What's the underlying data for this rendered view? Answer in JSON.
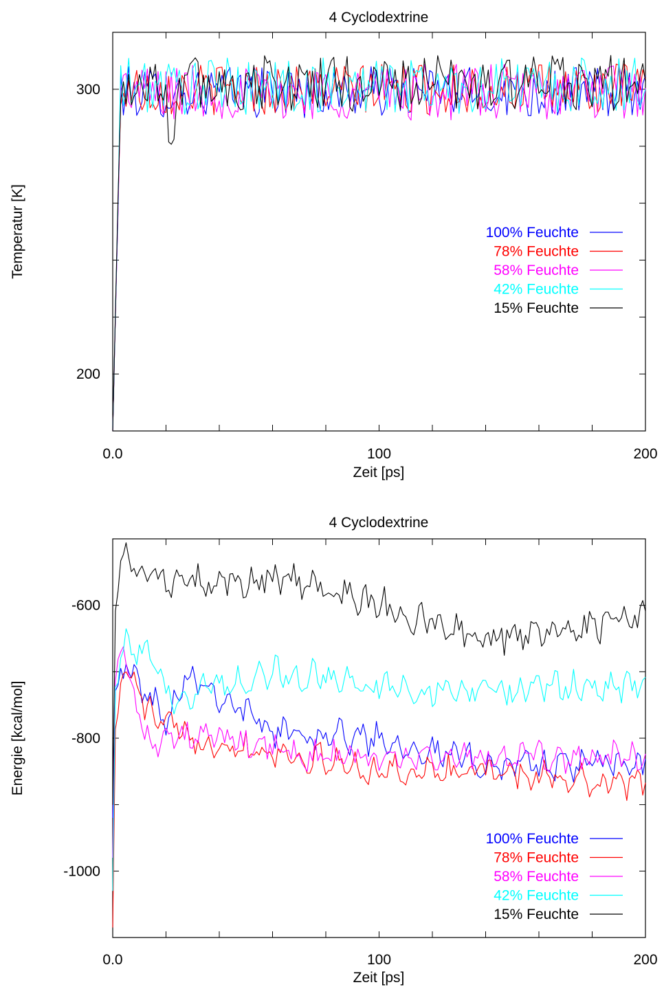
{
  "chart_data": [
    {
      "type": "line",
      "title": "4 Cyclodextrine",
      "xlabel": "Zeit [ps]",
      "ylabel": "Temperatur [K]",
      "xlim": [
        0,
        200
      ],
      "ylim": [
        180,
        320
      ],
      "xticks_labeled": [
        {
          "value": 0,
          "label": "0.0"
        },
        {
          "value": 100,
          "label": "100"
        },
        {
          "value": 200,
          "label": "200"
        }
      ],
      "xticks_minor": [
        20,
        40,
        60,
        80,
        120,
        140,
        160,
        180
      ],
      "yticks_labeled": [
        {
          "value": 200,
          "label": "200"
        },
        {
          "value": 300,
          "label": "300"
        }
      ],
      "yticks_minor": [
        220,
        240,
        260,
        280
      ],
      "grid": false,
      "legend_position": "right-middle",
      "series": [
        {
          "name": "100% Feuchte",
          "color": "#0000ff",
          "start": 180,
          "mean": 299,
          "amp": 4.5,
          "dip": null
        },
        {
          "name": "78% Feuchte",
          "color": "#ff0000",
          "start": 180,
          "mean": 300,
          "amp": 4.5,
          "dip": null
        },
        {
          "name": "58% Feuchte",
          "color": "#ff00ff",
          "start": 180,
          "mean": 299,
          "amp": 5,
          "dip": null
        },
        {
          "name": "42% Feuchte",
          "color": "#00ffff",
          "start": 180,
          "mean": 301,
          "amp": 5,
          "dip": null
        },
        {
          "name": "15% Feuchte",
          "color": "#000000",
          "start": 180,
          "mean": 302,
          "amp": 5,
          "dip": [
            22,
            280
          ]
        }
      ]
    },
    {
      "type": "line",
      "title": "4 Cyclodextrine",
      "xlabel": "Zeit [ps]",
      "ylabel": "Energie [kcal/mol]",
      "xlim": [
        0,
        200
      ],
      "ylim": [
        -1100,
        -500
      ],
      "xticks_labeled": [
        {
          "value": 0,
          "label": "0.0"
        },
        {
          "value": 100,
          "label": "100"
        },
        {
          "value": 200,
          "label": "200"
        }
      ],
      "xticks_minor": [
        20,
        40,
        60,
        80,
        120,
        140,
        160,
        180
      ],
      "yticks_labeled": [
        {
          "value": -600,
          "label": "-600"
        },
        {
          "value": -800,
          "label": "-800"
        },
        {
          "value": -1000,
          "label": "-1000"
        }
      ],
      "yticks_minor": [
        -700,
        -900
      ],
      "grid": false,
      "legend_position": "bottom-right",
      "series": [
        {
          "name": "100% Feuchte",
          "color": "#0000ff",
          "start": -920,
          "trend": [
            [
              1.5,
              -720
            ],
            [
              4,
              -690
            ],
            [
              20,
              -770
            ],
            [
              28,
              -700
            ],
            [
              60,
              -790
            ],
            [
              100,
              -800
            ],
            [
              140,
              -840
            ],
            [
              200,
              -840
            ]
          ],
          "amp": 18
        },
        {
          "name": "78% Feuchte",
          "color": "#ff0000",
          "start": -1085,
          "trend": [
            [
              1.5,
              -780
            ],
            [
              4,
              -690
            ],
            [
              15,
              -770
            ],
            [
              30,
              -800
            ],
            [
              60,
              -820
            ],
            [
              100,
              -850
            ],
            [
              140,
              -850
            ],
            [
              200,
              -870
            ]
          ],
          "amp": 18
        },
        {
          "name": "58% Feuchte",
          "color": "#ff00ff",
          "start": -980,
          "trend": [
            [
              1.5,
              -700
            ],
            [
              3,
              -650
            ],
            [
              12,
              -800
            ],
            [
              40,
              -800
            ],
            [
              80,
              -830
            ],
            [
              120,
              -830
            ],
            [
              200,
              -830
            ]
          ],
          "amp": 18
        },
        {
          "name": "42% Feuchte",
          "color": "#00ffff",
          "start": -1030,
          "trend": [
            [
              1.5,
              -700
            ],
            [
              4,
              -660
            ],
            [
              15,
              -680
            ],
            [
              20,
              -740
            ],
            [
              60,
              -700
            ],
            [
              120,
              -730
            ],
            [
              200,
              -720
            ]
          ],
          "amp": 18
        },
        {
          "name": "15% Feuchte",
          "color": "#000000",
          "start": -900,
          "trend": [
            [
              1.5,
              -580
            ],
            [
              5,
              -520
            ],
            [
              20,
              -570
            ],
            [
              70,
              -560
            ],
            [
              100,
              -600
            ],
            [
              140,
              -650
            ],
            [
              200,
              -620
            ]
          ],
          "amp": 20
        }
      ]
    }
  ]
}
